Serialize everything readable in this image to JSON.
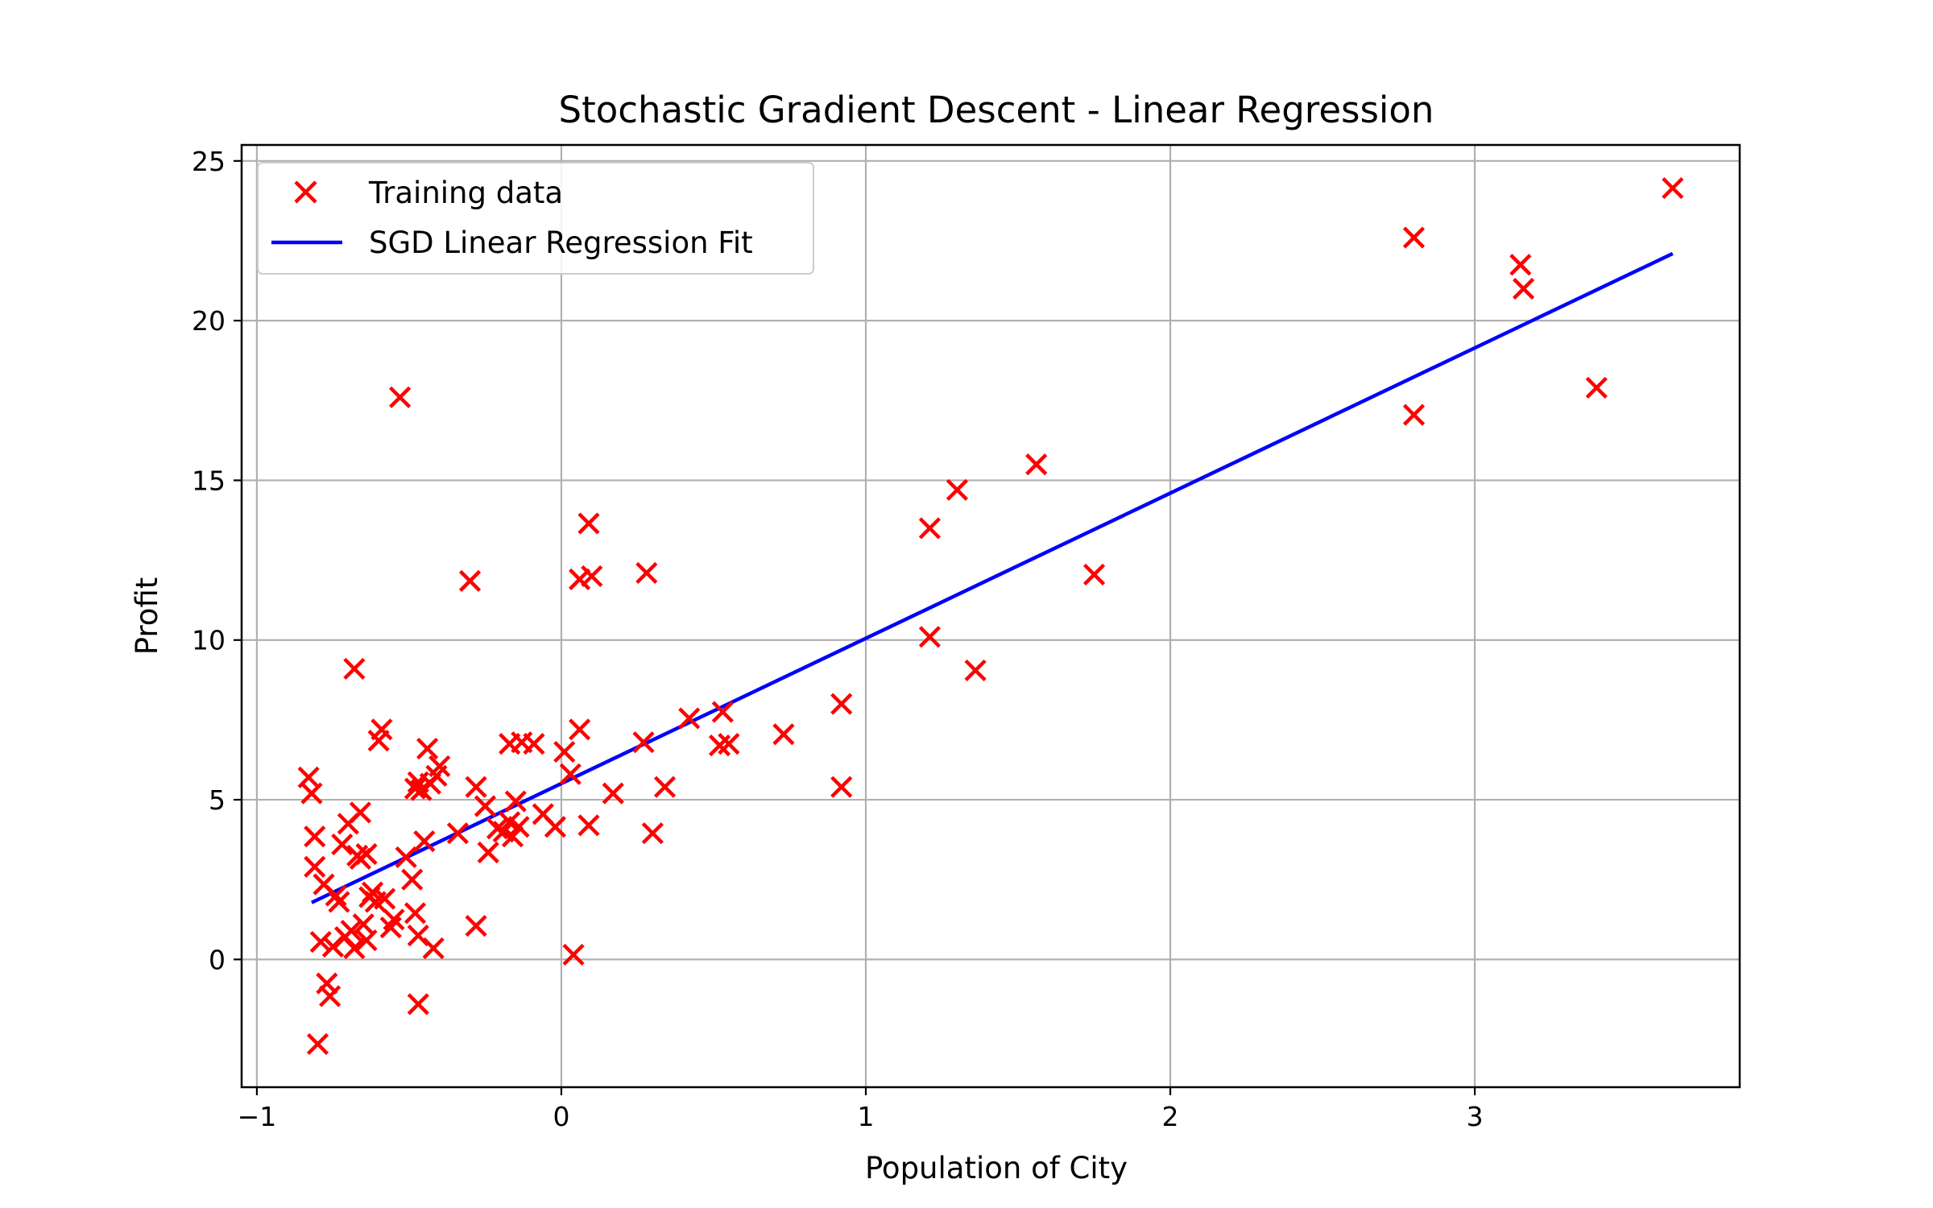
{
  "chart_data": {
    "type": "scatter",
    "title": "Stochastic Gradient Descent - Linear Regression",
    "xlabel": "Population of City",
    "ylabel": "Profit",
    "xlim": [
      -1.05,
      3.87
    ],
    "ylim": [
      -4.0,
      25.5
    ],
    "xticks": [
      -1,
      0,
      1,
      2,
      3
    ],
    "xtick_labels": [
      "−1",
      "0",
      "1",
      "2",
      "3"
    ],
    "yticks": [
      0,
      5,
      10,
      15,
      20,
      25
    ],
    "ytick_labels": [
      "0",
      "5",
      "10",
      "15",
      "20",
      "25"
    ],
    "grid": true,
    "legend_position": "top-left",
    "series": [
      {
        "name": "Training data",
        "kind": "scatter",
        "marker": "x",
        "color": "#ff0000",
        "points": [
          [
            -0.83,
            5.7
          ],
          [
            -0.82,
            5.2
          ],
          [
            -0.81,
            3.85
          ],
          [
            -0.81,
            2.9
          ],
          [
            -0.8,
            -2.65
          ],
          [
            -0.79,
            0.55
          ],
          [
            -0.78,
            2.35
          ],
          [
            -0.77,
            -0.75
          ],
          [
            -0.76,
            -1.15
          ],
          [
            -0.75,
            0.4
          ],
          [
            -0.74,
            2.0
          ],
          [
            -0.73,
            1.8
          ],
          [
            -0.72,
            3.6
          ],
          [
            -0.71,
            0.7
          ],
          [
            -0.7,
            4.25
          ],
          [
            -0.69,
            0.9
          ],
          [
            -0.68,
            0.35
          ],
          [
            -0.68,
            9.1
          ],
          [
            -0.67,
            3.25
          ],
          [
            -0.66,
            3.15
          ],
          [
            -0.66,
            4.6
          ],
          [
            -0.65,
            1.1
          ],
          [
            -0.64,
            3.3
          ],
          [
            -0.64,
            0.6
          ],
          [
            -0.63,
            1.95
          ],
          [
            -0.62,
            2.1
          ],
          [
            -0.61,
            1.8
          ],
          [
            -0.6,
            6.85
          ],
          [
            -0.59,
            7.2
          ],
          [
            -0.58,
            1.9
          ],
          [
            -0.56,
            1.0
          ],
          [
            -0.55,
            1.25
          ],
          [
            -0.53,
            17.6
          ],
          [
            -0.51,
            3.2
          ],
          [
            -0.49,
            2.5
          ],
          [
            -0.48,
            1.45
          ],
          [
            -0.48,
            5.35
          ],
          [
            -0.47,
            5.55
          ],
          [
            -0.47,
            0.75
          ],
          [
            -0.47,
            -1.4
          ],
          [
            -0.46,
            5.3
          ],
          [
            -0.45,
            3.7
          ],
          [
            -0.44,
            6.6
          ],
          [
            -0.43,
            5.5
          ],
          [
            -0.42,
            0.35
          ],
          [
            -0.41,
            5.75
          ],
          [
            -0.4,
            6.05
          ],
          [
            -0.34,
            3.95
          ],
          [
            -0.3,
            11.85
          ],
          [
            -0.28,
            5.4
          ],
          [
            -0.28,
            1.05
          ],
          [
            -0.25,
            4.8
          ],
          [
            -0.24,
            3.35
          ],
          [
            -0.21,
            4.1
          ],
          [
            -0.19,
            4.0
          ],
          [
            -0.17,
            4.3
          ],
          [
            -0.17,
            6.75
          ],
          [
            -0.16,
            3.85
          ],
          [
            -0.15,
            4.95
          ],
          [
            -0.14,
            4.15
          ],
          [
            -0.13,
            6.8
          ],
          [
            -0.09,
            6.75
          ],
          [
            -0.06,
            4.55
          ],
          [
            -0.02,
            4.15
          ],
          [
            0.01,
            6.5
          ],
          [
            0.03,
            5.8
          ],
          [
            0.04,
            0.15
          ],
          [
            0.06,
            11.9
          ],
          [
            0.06,
            7.2
          ],
          [
            0.09,
            13.65
          ],
          [
            0.09,
            4.2
          ],
          [
            0.1,
            12.0
          ],
          [
            0.17,
            5.2
          ],
          [
            0.27,
            6.8
          ],
          [
            0.28,
            12.1
          ],
          [
            0.3,
            3.95
          ],
          [
            0.34,
            5.4
          ],
          [
            0.42,
            7.55
          ],
          [
            0.52,
            6.7
          ],
          [
            0.53,
            7.75
          ],
          [
            0.55,
            6.75
          ],
          [
            0.73,
            7.05
          ],
          [
            0.92,
            8.0
          ],
          [
            0.92,
            5.4
          ],
          [
            1.21,
            13.5
          ],
          [
            1.21,
            10.1
          ],
          [
            1.3,
            14.7
          ],
          [
            1.36,
            9.05
          ],
          [
            1.56,
            15.5
          ],
          [
            1.75,
            12.05
          ],
          [
            2.8,
            22.6
          ],
          [
            2.8,
            17.05
          ],
          [
            3.15,
            21.75
          ],
          [
            3.16,
            21.0
          ],
          [
            3.4,
            17.9
          ],
          [
            3.65,
            24.15
          ]
        ]
      },
      {
        "name": "SGD Linear Regression Fit",
        "kind": "line",
        "color": "#0000ff",
        "points": [
          [
            -0.82,
            1.78
          ],
          [
            3.65,
            22.1
          ]
        ]
      }
    ]
  }
}
